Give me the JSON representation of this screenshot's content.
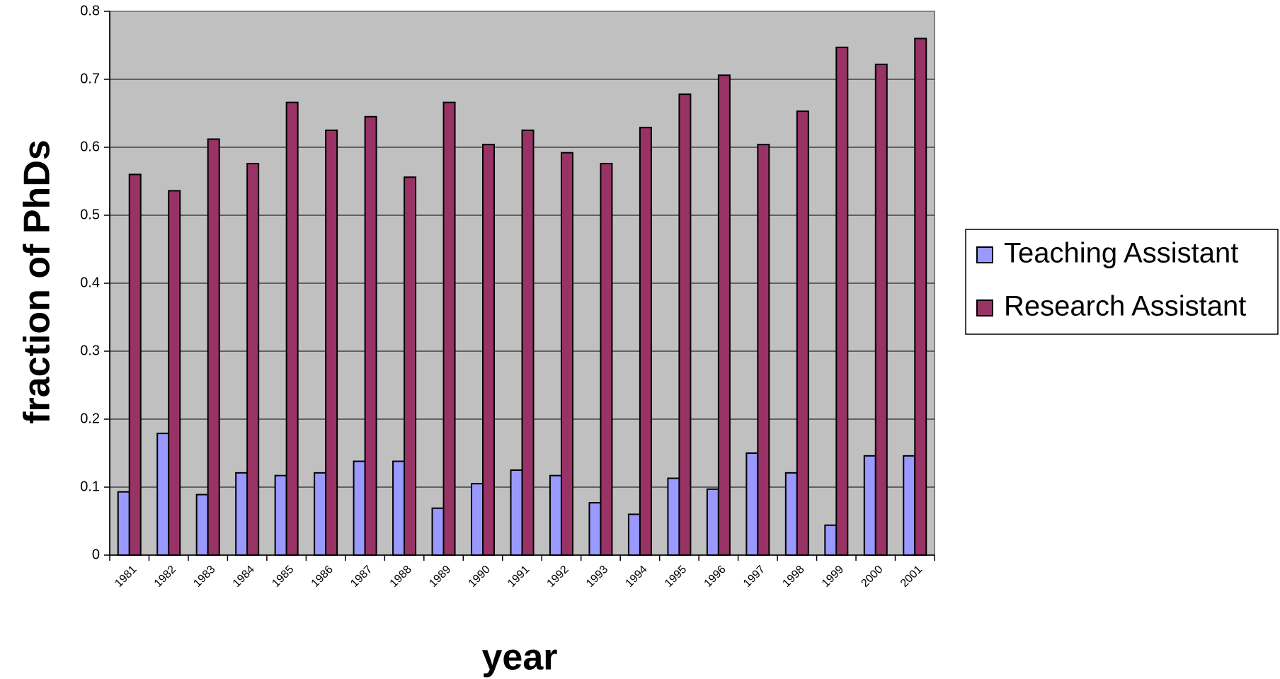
{
  "chart_data": {
    "type": "bar",
    "x_label": "year",
    "y_label": "fraction of PhDs",
    "categories": [
      "1981",
      "1982",
      "1983",
      "1984",
      "1985",
      "1986",
      "1987",
      "1988",
      "1989",
      "1990",
      "1991",
      "1992",
      "1993",
      "1994",
      "1995",
      "1996",
      "1997",
      "1998",
      "1999",
      "2000",
      "2001"
    ],
    "series": [
      {
        "name": "Teaching Assistant",
        "color": "#9999ff",
        "values": [
          0.093,
          0.179,
          0.089,
          0.121,
          0.117,
          0.121,
          0.138,
          0.138,
          0.069,
          0.105,
          0.125,
          0.117,
          0.077,
          0.06,
          0.113,
          0.097,
          0.15,
          0.121,
          0.044,
          0.146,
          0.146
        ]
      },
      {
        "name": "Research Assistant",
        "color": "#993366",
        "values": [
          0.56,
          0.536,
          0.612,
          0.576,
          0.666,
          0.625,
          0.645,
          0.556,
          0.666,
          0.604,
          0.625,
          0.592,
          0.576,
          0.629,
          0.678,
          0.706,
          0.604,
          0.653,
          0.747,
          0.722,
          0.76
        ]
      }
    ],
    "ylim": [
      0,
      0.8
    ],
    "yticks": [
      0,
      0.1,
      0.2,
      0.3,
      0.4,
      0.5,
      0.6,
      0.7,
      0.8
    ],
    "grid": true,
    "legend": "right"
  }
}
